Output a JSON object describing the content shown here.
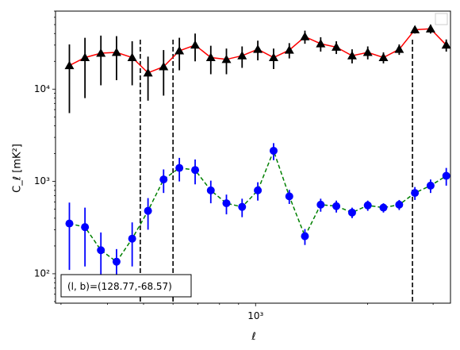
{
  "chart_data": {
    "type": "line",
    "xscale": "log",
    "yscale": "log",
    "xlim": [
      290,
      3340
    ],
    "ylim": [
      48,
      70000
    ],
    "xlabel": "ℓ",
    "ylabel": "C_ℓ  [mK²]",
    "x_tick_labels": [
      {
        "value": 1000,
        "label": "10³"
      }
    ],
    "y_tick_labels": [
      {
        "value": 100,
        "label": "10²"
      },
      {
        "value": 1000,
        "label": "10³"
      },
      {
        "value": 10000,
        "label": "10⁴"
      }
    ],
    "vlines": [
      490,
      600,
      2640
    ],
    "annotation": "(l, b)=(128.77,-68.57)",
    "legend": "top-right (empty)",
    "grid": false,
    "x": [
      316,
      348,
      384,
      423,
      466,
      514,
      566,
      624,
      688,
      758,
      835,
      920,
      1014,
      1118,
      1232,
      1357,
      1496,
      1648,
      1817,
      2002,
      2206,
      2432,
      2680,
      2953,
      3254
    ],
    "series": [
      {
        "color": "#ff0000",
        "marker": "triangle",
        "marker_color": "#000000",
        "linestyle": "solid",
        "values": [
          18000,
          22000,
          24500,
          25000,
          22000,
          15000,
          17500,
          26000,
          30000,
          22000,
          21000,
          23000,
          27000,
          22000,
          26500,
          37000,
          31000,
          28500,
          23000,
          25000,
          22000,
          27000,
          44000,
          45000,
          30000
        ],
        "errors": [
          12500,
          14000,
          13500,
          12500,
          11000,
          7500,
          9000,
          10000,
          10000,
          7500,
          6500,
          6000,
          6500,
          5500,
          5000,
          6000,
          5500,
          4500,
          4000,
          4000,
          3000,
          3500,
          4000,
          5000,
          4500
        ]
      },
      {
        "color": "#008000",
        "marker": "circle",
        "marker_color": "#0000ff",
        "linestyle": "dashed",
        "values": [
          350,
          320,
          180,
          135,
          240,
          480,
          1050,
          1400,
          1330,
          800,
          580,
          530,
          800,
          2150,
          690,
          255,
          560,
          540,
          460,
          550,
          520,
          560,
          750,
          900,
          1150
        ],
        "errors": [
          240,
          200,
          100,
          50,
          120,
          180,
          300,
          400,
          400,
          220,
          140,
          120,
          180,
          450,
          120,
          50,
          90,
          80,
          60,
          70,
          60,
          70,
          120,
          150,
          250
        ]
      }
    ]
  }
}
